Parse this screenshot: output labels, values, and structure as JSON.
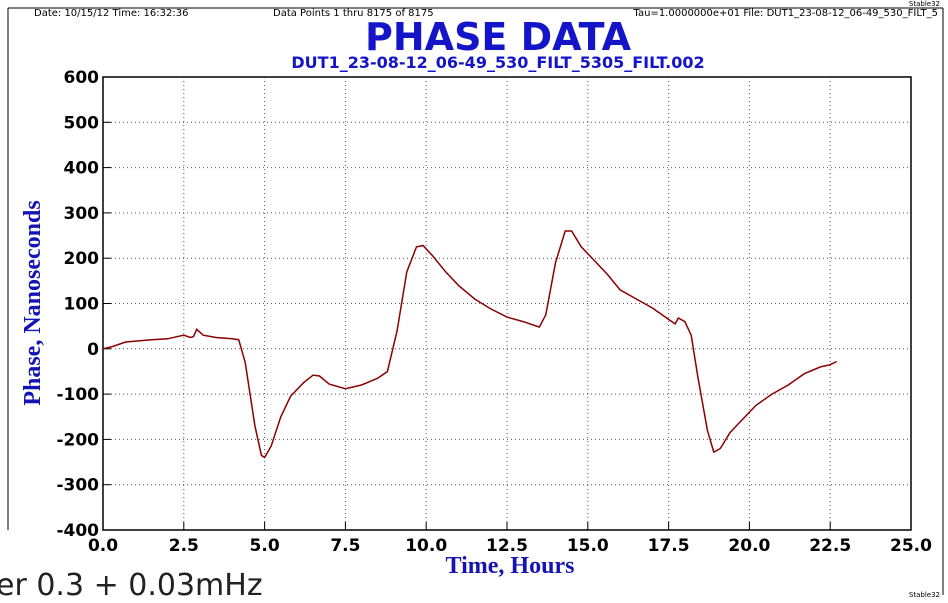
{
  "chart_data": {
    "type": "line",
    "title": "PHASE DATA",
    "subtitle": "DUT1_23-08-12_06-49_530_FILT_5305_FILT.002",
    "header": [
      "Date: 10/15/12  Time: 16:32:36",
      "Data Points 1 thru 8175 of 8175",
      "Tau=1.0000000e+01 File: DUT1_23-08-12_06-49_530_FILT_5"
    ],
    "watermark": "Stable32",
    "overlay_text": "er 0.3 + 0.03mHz",
    "x_label": "Time,  Hours",
    "y_label": "Phase,  Nanoseconds",
    "xlim": [
      0,
      25
    ],
    "ylim": [
      -400,
      600
    ],
    "xticks": [
      {
        "value": 0,
        "label": "0.0"
      },
      2.5,
      {
        "value": 5,
        "label": "5.0"
      },
      7.5,
      {
        "value": 10,
        "label": "10.0"
      },
      12.5,
      {
        "value": 15,
        "label": "15.0"
      },
      17.5,
      {
        "value": 20,
        "label": "20.0"
      },
      22.5,
      {
        "value": 25,
        "label": "25.0"
      }
    ],
    "yticks": [
      600,
      500,
      400,
      300,
      200,
      100,
      0,
      -100,
      -200,
      -300,
      -400
    ],
    "grid": true,
    "x": [
      0,
      0.3,
      0.7,
      1.5,
      2.0,
      2.5,
      2.7,
      2.8,
      2.9,
      3.1,
      3.5,
      4.0,
      4.2,
      4.4,
      4.7,
      4.9,
      5.0,
      5.2,
      5.5,
      5.8,
      6.2,
      6.5,
      6.7,
      7.0,
      7.5,
      8.0,
      8.5,
      8.8,
      9.1,
      9.4,
      9.7,
      9.9,
      10.2,
      10.6,
      11.0,
      11.5,
      12.0,
      12.5,
      13.0,
      13.5,
      13.7,
      14.0,
      14.3,
      14.5,
      14.8,
      15.2,
      15.6,
      16.0,
      16.5,
      17.0,
      17.5,
      17.7,
      17.8,
      18.0,
      18.2,
      18.4,
      18.7,
      18.9,
      19.1,
      19.4,
      19.8,
      20.2,
      20.7,
      21.2,
      21.7,
      22.2,
      22.5,
      22.7
    ],
    "series": [
      {
        "name": "Phase",
        "color": "#8b0000",
        "values": [
          0,
          5,
          15,
          20,
          22,
          30,
          25,
          27,
          43,
          30,
          25,
          22,
          20,
          -30,
          -170,
          -235,
          -240,
          -215,
          -150,
          -105,
          -75,
          -58,
          -60,
          -78,
          -88,
          -80,
          -65,
          -50,
          40,
          170,
          225,
          228,
          205,
          170,
          140,
          110,
          88,
          70,
          60,
          48,
          75,
          190,
          260,
          260,
          225,
          195,
          165,
          130,
          110,
          90,
          65,
          55,
          68,
          60,
          30,
          -60,
          -180,
          -228,
          -220,
          -185,
          -155,
          -125,
          -100,
          -80,
          -55,
          -40,
          -35,
          -28
        ]
      }
    ]
  }
}
